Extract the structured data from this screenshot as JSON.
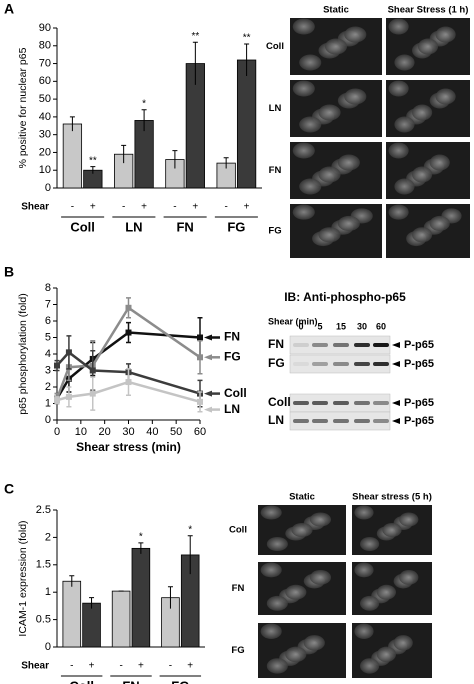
{
  "chart_data": [
    {
      "type": "bar",
      "ylabel": "% positive for nuclear p65",
      "x_row_label": "Shear",
      "categories": [
        "Coll",
        "LN",
        "FN",
        "FG"
      ],
      "series": [
        {
          "name": "-",
          "color": "#c8c8c8",
          "values": [
            36,
            19,
            16,
            14
          ],
          "errors": [
            4,
            5,
            5,
            3
          ]
        },
        {
          "name": "+",
          "color": "#3a3a3a",
          "values": [
            10,
            38,
            70,
            72
          ],
          "errors": [
            2,
            6,
            12,
            9
          ],
          "annotations": [
            "**",
            "*",
            "**",
            "**"
          ]
        }
      ],
      "ylim": [
        0,
        90
      ],
      "yticks": [
        0,
        10,
        20,
        30,
        40,
        50,
        60,
        70,
        80,
        90
      ]
    },
    {
      "type": "line",
      "ylabel": "p65 phosphorylation (fold)",
      "xlabel": "Shear stress (min)",
      "x": [
        0,
        5,
        15,
        30,
        60
      ],
      "series": [
        {
          "name": "FN",
          "color": "#111111",
          "values": [
            1.3,
            2.5,
            3.7,
            5.3,
            5.0
          ],
          "errors": [
            0.3,
            0.8,
            1.0,
            0.6,
            1.2
          ]
        },
        {
          "name": "FG",
          "color": "#8c8c8c",
          "values": [
            1.3,
            3.2,
            3.3,
            6.8,
            3.8
          ],
          "errors": [
            0.3,
            0.8,
            1.5,
            0.6,
            1.0
          ]
        },
        {
          "name": "Coll",
          "color": "#3c3c3c",
          "values": [
            3.3,
            4.1,
            3.0,
            2.9,
            1.6
          ],
          "errors": [
            0.3,
            1.0,
            1.2,
            0.5,
            0.8
          ]
        },
        {
          "name": "LN",
          "color": "#c4c4c4",
          "values": [
            1.2,
            1.4,
            1.6,
            2.3,
            1.1
          ],
          "errors": [
            0.2,
            0.6,
            1.0,
            0.8,
            0.6
          ]
        }
      ],
      "xlim": [
        0,
        60
      ],
      "xticks": [
        0,
        10,
        20,
        30,
        40,
        50,
        60
      ],
      "ylim": [
        0,
        8
      ],
      "yticks": [
        0,
        1,
        2,
        3,
        4,
        5,
        6,
        7,
        8
      ]
    },
    {
      "type": "bar",
      "ylabel": "ICAM-1 expression (fold)",
      "x_row_label": "Shear",
      "categories": [
        "Coll",
        "FN",
        "FG"
      ],
      "series": [
        {
          "name": "-",
          "color": "#c8c8c8",
          "values": [
            1.2,
            1.02,
            0.9
          ],
          "errors": [
            0.1,
            0,
            0.2
          ]
        },
        {
          "name": "+",
          "color": "#3a3a3a",
          "values": [
            0.8,
            1.8,
            1.68
          ],
          "errors": [
            0.1,
            0.1,
            0.35
          ],
          "annotations": [
            null,
            "*",
            "*"
          ]
        }
      ],
      "ylim": [
        0,
        2.5
      ],
      "yticks": [
        0,
        0.5,
        1,
        1.5,
        2,
        2.5
      ]
    }
  ],
  "panels": {
    "A": {
      "letter": "A",
      "image_columns": [
        "Static",
        "Shear Stress (1 h)"
      ],
      "image_rows": [
        "Coll",
        "LN",
        "FN",
        "FG"
      ]
    },
    "B": {
      "letter": "B",
      "blot": {
        "title": "IB: Anti-phospho-p65",
        "shear_label": "Shear (min)",
        "times": [
          "0",
          "5",
          "15",
          "30",
          "60"
        ],
        "rows": [
          {
            "label": "FN",
            "band": "P-p65"
          },
          {
            "label": "FG",
            "band": "P-p65"
          },
          {
            "label": "Coll",
            "band": "P-p65"
          },
          {
            "label": "LN",
            "band": "P-p65"
          }
        ]
      }
    },
    "C": {
      "letter": "C",
      "image_columns": [
        "Static",
        "Shear stress (5 h)"
      ],
      "image_rows": [
        "Coll",
        "FN",
        "FG"
      ]
    }
  }
}
